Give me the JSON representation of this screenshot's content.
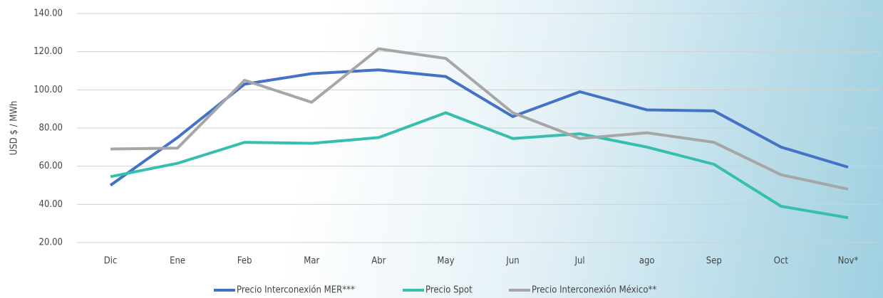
{
  "chart_data": {
    "type": "line",
    "y_label": "USD $ / MWh",
    "categories": [
      "Dic",
      "Ene",
      "Feb",
      "Mar",
      "Abr",
      "May",
      "Jun",
      "Jul",
      "ago",
      "Sep",
      "Oct",
      "Nov*"
    ],
    "series": [
      {
        "name": "Precio Interconexión MER***",
        "color": "#4472c4",
        "values": [
          50,
          75,
          103,
          108.5,
          110.5,
          107,
          86,
          99,
          89.5,
          89,
          70,
          59.5
        ]
      },
      {
        "name": "Precio Spot",
        "color": "#36bfae",
        "values": [
          54.5,
          61.5,
          72.5,
          72,
          75,
          88,
          74.5,
          77,
          70,
          61,
          39,
          33
        ]
      },
      {
        "name": "Precio Interconexión México**",
        "color": "#a6a6a6",
        "values": [
          69,
          69.5,
          105,
          93.5,
          121.5,
          116.5,
          88,
          74.5,
          77.5,
          72.5,
          55.5,
          48
        ]
      }
    ],
    "ylim": [
      20,
      140
    ],
    "yticks": [
      {
        "value": 20,
        "label": "20.00"
      },
      {
        "value": 40,
        "label": "40.00"
      },
      {
        "value": 60,
        "label": "60.00"
      },
      {
        "value": 80,
        "label": "80.00"
      },
      {
        "value": 100,
        "label": "100.00"
      },
      {
        "value": 120,
        "label": "120.00"
      },
      {
        "value": 140,
        "label": "140.00"
      }
    ],
    "grid": true,
    "legend": "bottom"
  }
}
